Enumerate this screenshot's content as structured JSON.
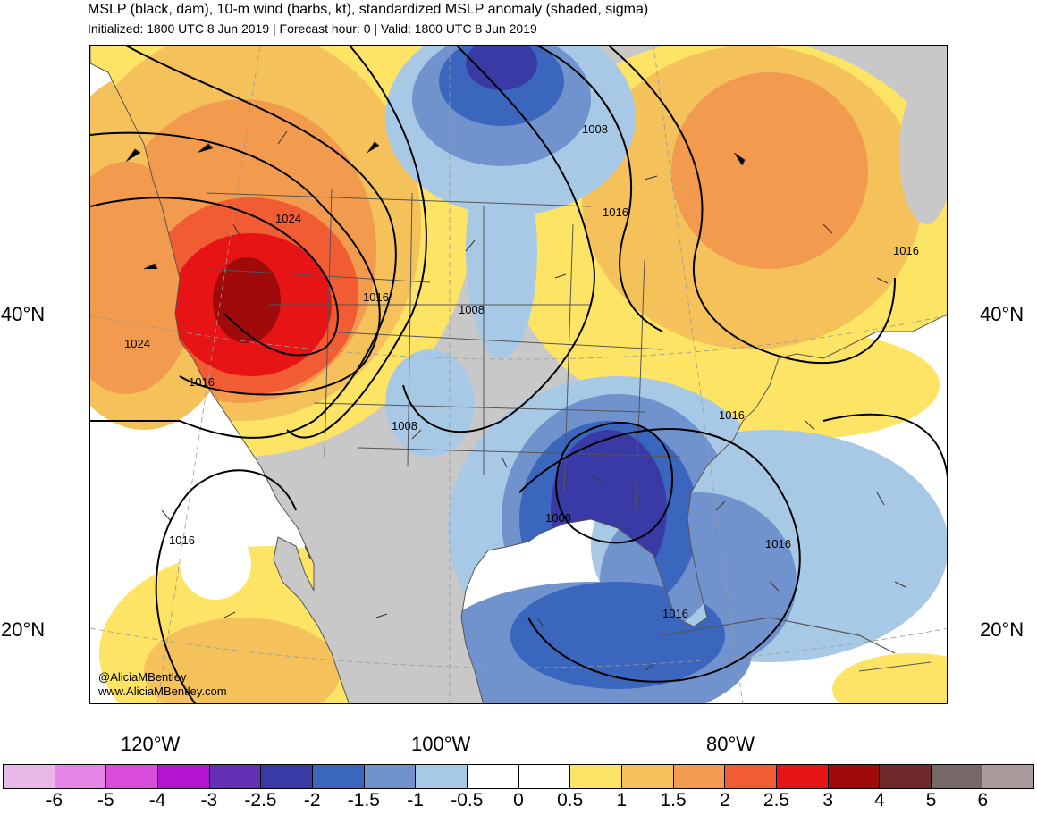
{
  "header": {
    "title": "MSLP (black, dam), 10-m wind (barbs, kt), standardized MSLP anomaly (shaded, sigma)",
    "subtitle": "Initialized: 1800 UTC 8 Jun 2019 | Forecast hour: 0 | Valid: 1800 UTC 8 Jun 2019"
  },
  "map": {
    "lat_labels": [
      "40°N",
      "40°N",
      "20°N",
      "20°N"
    ],
    "lon_labels": [
      "120°W",
      "100°W",
      "80°W"
    ],
    "isobar_labels": [
      "1024",
      "1024",
      "1016",
      "1016",
      "1008",
      "1008",
      "1008",
      "1016",
      "1016",
      "1016",
      "1016",
      "1016",
      "1008",
      "1016"
    ],
    "credit_handle": "@AliciaMBentley",
    "credit_site": "www.AliciaMBentley.com",
    "land_color": "#c8c8c8",
    "ocean_color": "#ffffff"
  },
  "colorbar": {
    "colors": [
      "#e9b8e9",
      "#e683e6",
      "#d94cd9",
      "#b314cf",
      "#6630b4",
      "#3a3aa6",
      "#3a66bd",
      "#7193cd",
      "#a8c9e6",
      "#ffffff",
      "#ffffff",
      "#fde464",
      "#f4c15a",
      "#f29a4d",
      "#f25c33",
      "#e61414",
      "#a00a0a",
      "#6e2a2a",
      "#766868",
      "#a89a9a"
    ],
    "tick_labels": [
      "-6",
      "-5",
      "-4",
      "-3",
      "-2.5",
      "-2",
      "-1.5",
      "-1",
      "-0.5",
      "0",
      "0.5",
      "1",
      "1.5",
      "2",
      "2.5",
      "3",
      "4",
      "5",
      "6"
    ]
  }
}
